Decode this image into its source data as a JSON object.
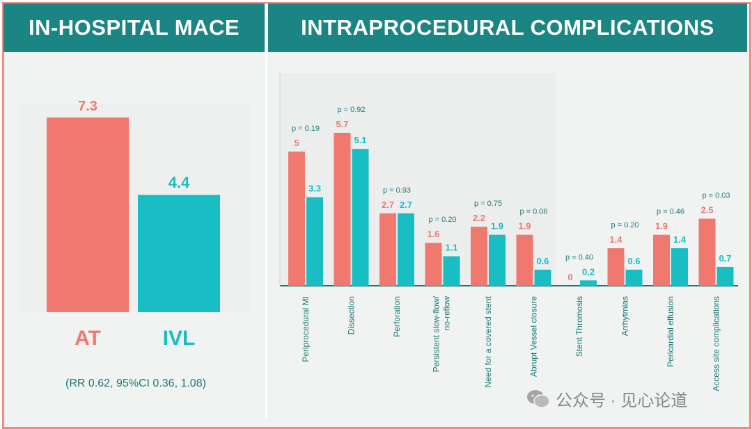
{
  "colors": {
    "at": "#f0786f",
    "ivl": "#18bec3",
    "header": "#1a8582",
    "text": "#1a7a77"
  },
  "mace": {
    "title": "IN-HOSPITAL MACE",
    "footnote": "(RR 0.62, 95%CI 0.36, 1.08)"
  },
  "complications": {
    "title": "INTRAPROCEDURAL COMPLICATIONS"
  },
  "watermark": {
    "text": "公众号 · 见心论道",
    "icon": "wechat-icon"
  },
  "chart_data": [
    {
      "type": "bar",
      "title": "IN-HOSPITAL MACE",
      "categories": [
        "AT",
        "IVL"
      ],
      "values": [
        7.3,
        4.4
      ],
      "value_labels": [
        "7.3",
        "4.4"
      ],
      "ylim": [
        0,
        8
      ],
      "annotation": "(RR 0.62, 95%CI 0.36, 1.08)"
    },
    {
      "type": "bar",
      "title": "INTRAPROCEDURAL COMPLICATIONS",
      "categories": [
        "Periprocedural MI",
        "Dissection",
        "Perforation",
        "Persistent slow-flow/ no-reflow",
        "Need for a covered stent",
        "Abrupt Vessel closure",
        "Stent Thromosis",
        "Arrhytmias",
        "Pericardial effusion",
        "Access site complications"
      ],
      "series": [
        {
          "name": "AT",
          "values": [
            5,
            5.7,
            2.7,
            1.6,
            2.2,
            1.9,
            0,
            1.4,
            1.9,
            2.5
          ],
          "labels": [
            "5",
            "5.7",
            "2.7",
            "1.6",
            "2.2",
            "1.9",
            "0",
            "1.4",
            "1.9",
            "2.5"
          ]
        },
        {
          "name": "IVL",
          "values": [
            3.3,
            5.1,
            2.7,
            1.1,
            1.9,
            0.6,
            0.2,
            0.6,
            1.4,
            0.7
          ],
          "labels": [
            "3.3",
            "5.1",
            "2.7",
            "1.1",
            "1.9",
            "0.6",
            "0.2",
            "0.6",
            "1.4",
            "0.7"
          ]
        }
      ],
      "p_values": [
        "p = 0.19",
        "p = 0.92",
        "p = 0.93",
        "p = 0.20",
        "p = 0.75",
        "p = 0.06",
        "p = 0.40",
        "p = 0.20",
        "p = 0.46",
        "p = 0.03"
      ],
      "ylim": [
        0,
        6
      ]
    }
  ]
}
